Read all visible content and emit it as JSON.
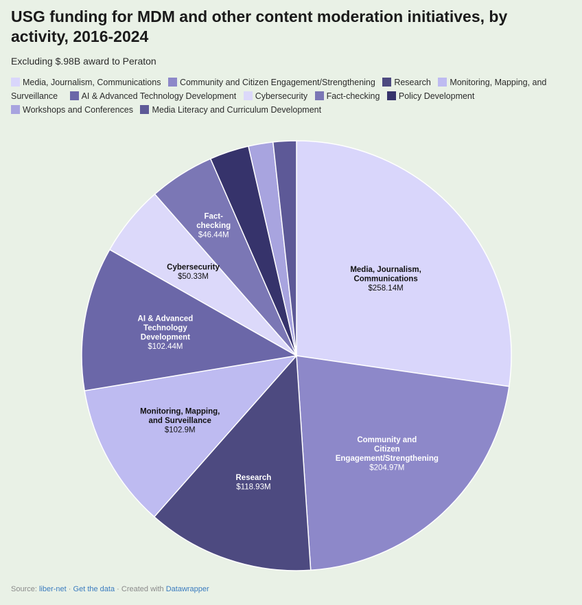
{
  "header": {
    "title": "USG funding for MDM and other content moderation initiatives, by activity, 2016-2024",
    "subtitle": "Excluding $.98B award to Peraton"
  },
  "footer": {
    "source_prefix": "Source:",
    "source_link": "liber-net",
    "sep1": "·",
    "get_data": "Get the data",
    "sep2": "·",
    "created_with": "Created with",
    "tool": "Datawrapper"
  },
  "chart_data": {
    "type": "pie",
    "title": "USG funding for MDM and other content moderation initiatives, by activity, 2016-2024",
    "subtitle": "Excluding $.98B award to Peraton",
    "unit": "$M",
    "legend_position": "top",
    "slices": [
      {
        "label": "Media, Journalism, Communications",
        "value": 258.14,
        "value_label": "$258.14M",
        "color": "#d9d6fb",
        "text_color": "#111111"
      },
      {
        "label": "Community and Citizen Engagement/Strengthening",
        "value": 204.97,
        "value_label": "$204.97M",
        "color": "#8d88c9",
        "text_color": "#ffffff"
      },
      {
        "label": "Research",
        "value": 118.93,
        "value_label": "$118.93M",
        "color": "#4d4a80",
        "text_color": "#ffffff"
      },
      {
        "label": "Monitoring, Mapping, and Surveillance",
        "value": 102.9,
        "value_label": "$102.9M",
        "color": "#bebbf1",
        "text_color": "#111111"
      },
      {
        "label": "AI & Advanced Technology Development",
        "value": 102.44,
        "value_label": "$102.44M",
        "color": "#6b67a8",
        "text_color": "#ffffff"
      },
      {
        "label": "Cybersecurity",
        "value": 50.33,
        "value_label": "$50.33M",
        "color": "#dcd9fa",
        "text_color": "#111111"
      },
      {
        "label": "Fact-checking",
        "value": 46.44,
        "value_label": "$46.44M",
        "color": "#7b77b5",
        "text_color": "#ffffff"
      },
      {
        "label": "Policy Development",
        "value": 28.0,
        "value_label": "",
        "color": "#36336b",
        "text_color": "#ffffff"
      },
      {
        "label": "Workshops and Conferences",
        "value": 17.5,
        "value_label": "",
        "color": "#a8a4df",
        "text_color": "#111111"
      },
      {
        "label": "Media Literacy and Curriculum Development",
        "value": 16.5,
        "value_label": "",
        "color": "#5d5997",
        "text_color": "#ffffff"
      }
    ],
    "slice_label_lines": [
      [
        "Media, Journalism,",
        "Communications"
      ],
      [
        "Community and",
        "Citizen",
        "Engagement/Strengthening"
      ],
      [
        "Research"
      ],
      [
        "Monitoring, Mapping,",
        "and Surveillance"
      ],
      [
        "AI & Advanced",
        "Technology",
        "Development"
      ],
      [
        "Cybersecurity"
      ],
      [
        "Fact-",
        "checking"
      ],
      [],
      [],
      []
    ]
  }
}
